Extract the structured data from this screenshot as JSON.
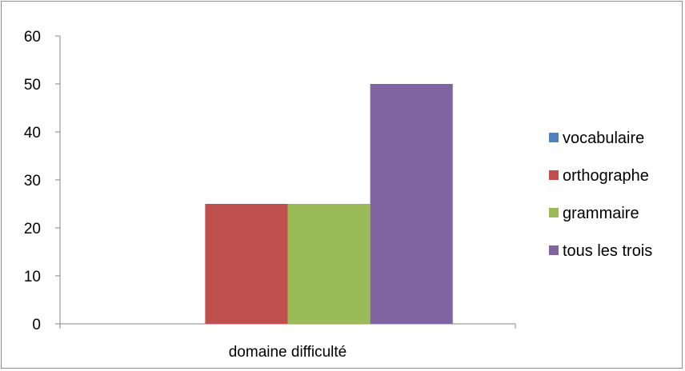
{
  "chart_data": {
    "type": "bar",
    "categories": [
      "domaine difficulté"
    ],
    "series": [
      {
        "name": "vocabulaire",
        "values": [
          0
        ],
        "color": "#4F81BD"
      },
      {
        "name": "orthographe",
        "values": [
          25
        ],
        "color": "#C0504D"
      },
      {
        "name": "grammaire",
        "values": [
          25
        ],
        "color": "#9BBB59"
      },
      {
        "name": "tous les trois",
        "values": [
          50
        ],
        "color": "#8064A2"
      }
    ],
    "title": "",
    "xlabel": "",
    "ylabel": "",
    "ylim": [
      0,
      60
    ],
    "yticks": [
      0,
      10,
      20,
      30,
      40,
      50,
      60
    ],
    "grid": false,
    "legend_position": "right"
  }
}
